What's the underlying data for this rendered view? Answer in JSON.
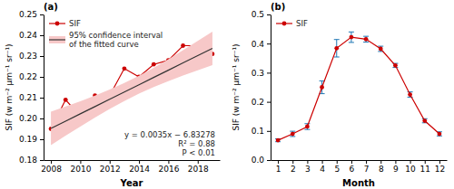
{
  "chart_data": [
    {
      "type": "line",
      "title": "(a)",
      "x_label": "Year",
      "y_label": "SIF (w m⁻² μm⁻¹ sr⁻¹)",
      "x": [
        2008,
        2009,
        2010,
        2011,
        2012,
        2013,
        2014,
        2015,
        2016,
        2017,
        2018,
        2019
      ],
      "series": [
        {
          "name": "SIF",
          "color": "#cc0000",
          "marker": "circle",
          "values": [
            0.195,
            0.209,
            0.201,
            0.211,
            0.211,
            0.224,
            0.22,
            0.226,
            0.228,
            0.235,
            0.235,
            0.231
          ]
        },
        {
          "name": "95% confidence interval\nof the fitted curve",
          "type": "band",
          "color": "#f7c8c8",
          "values": [
            0.19522,
            0.19872,
            0.20222,
            0.20572,
            0.20922,
            0.21272,
            0.21622,
            0.21972,
            0.22322,
            0.22672,
            0.23022,
            0.23372
          ],
          "lower": [
            0.18719,
            0.1917,
            0.19614,
            0.20045,
            0.20456,
            0.20841,
            0.21191,
            0.21506,
            0.21795,
            0.22064,
            0.2232,
            0.22569
          ],
          "upper": [
            0.20325,
            0.20574,
            0.2083,
            0.21099,
            0.21388,
            0.21704,
            0.22054,
            0.22438,
            0.22849,
            0.2328,
            0.23724,
            0.24175
          ]
        }
      ],
      "annotations": [
        "y = 0.0035x − 6.83278",
        "R² = 0.88",
        "P < 0.01"
      ],
      "xlim": [
        2007.5,
        2019.5
      ],
      "xticks": [
        2008,
        2010,
        2012,
        2014,
        2016,
        2018
      ],
      "ylim": [
        0.18,
        0.25
      ],
      "yticks": [
        0.18,
        0.19,
        {
          "value": 0.2,
          "label": "0.20"
        },
        0.21,
        0.22,
        0.23,
        0.24,
        0.25
      ],
      "grid": false,
      "legend": "upper left"
    },
    {
      "type": "line",
      "title": "(b)",
      "x_label": "Month",
      "y_label": "SIF (w m⁻² μm⁻¹ sr⁻¹)",
      "x": [
        1,
        2,
        3,
        4,
        5,
        6,
        7,
        8,
        9,
        10,
        11,
        12
      ],
      "series": [
        {
          "name": "SIF",
          "color": "#cc0000",
          "marker": "circle",
          "values": [
            0.068,
            0.09,
            0.115,
            0.25,
            0.384,
            0.422,
            0.415,
            0.382,
            0.325,
            0.225,
            0.135,
            0.09
          ],
          "errors": [
            0.005,
            0.009,
            0.01,
            0.022,
            0.03,
            0.018,
            0.01,
            0.009,
            0.007,
            0.009,
            0.007,
            0.007
          ]
        }
      ],
      "xlim": [
        0.5,
        12.5
      ],
      "xticks": [
        1,
        2,
        3,
        4,
        5,
        6,
        7,
        8,
        9,
        10,
        11,
        12
      ],
      "ylim": [
        0,
        0.5
      ],
      "yticks": [
        {
          "value": 0,
          "label": "0.0"
        },
        0.1,
        0.2,
        0.3,
        0.4,
        0.5
      ],
      "grid": false,
      "legend": "upper left"
    }
  ]
}
